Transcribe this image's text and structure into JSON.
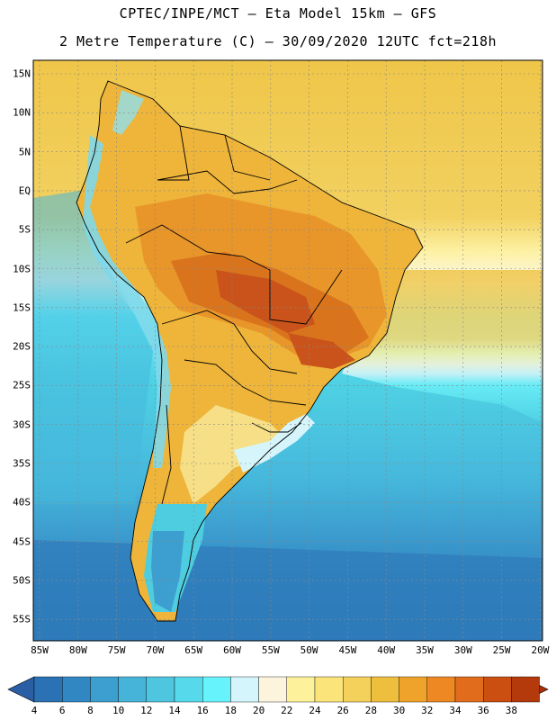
{
  "header": {
    "title_line1": "CPTEC/INPE/MCT –  Eta Model 15km – GFS",
    "title_line2": "2 Metre Temperature (C) – 30/09/2020 12UTC fct=218h"
  },
  "map": {
    "region": "South America",
    "lat_labels": [
      "15N",
      "10N",
      "5N",
      "EQ",
      "5S",
      "10S",
      "15S",
      "20S",
      "25S",
      "30S",
      "35S",
      "40S",
      "45S",
      "50S",
      "55S"
    ],
    "lon_labels": [
      "85W",
      "80W",
      "75W",
      "70W",
      "65W",
      "60W",
      "55W",
      "50W",
      "45W",
      "40W",
      "35W",
      "30W",
      "25W",
      "20W"
    ],
    "ocean_color": "#49d3e2",
    "tropical_ocean_color": "#eac140"
  },
  "colorbar": {
    "labels": [
      "4",
      "6",
      "8",
      "10",
      "12",
      "14",
      "16",
      "18",
      "20",
      "22",
      "24",
      "26",
      "28",
      "30",
      "32",
      "34",
      "36",
      "38"
    ],
    "colors": [
      "#2a72b3",
      "#3187c2",
      "#3d9fcf",
      "#46b4d9",
      "#4fc6e0",
      "#56d9ea",
      "#66f3fb",
      "#d3f5fb",
      "#fcf4dc",
      "#fdf29b",
      "#fbe47a",
      "#f4d15a",
      "#eebe3d",
      "#f0a32b",
      "#ee8823",
      "#e06c1c",
      "#cc4f12",
      "#b43a0c"
    ]
  }
}
